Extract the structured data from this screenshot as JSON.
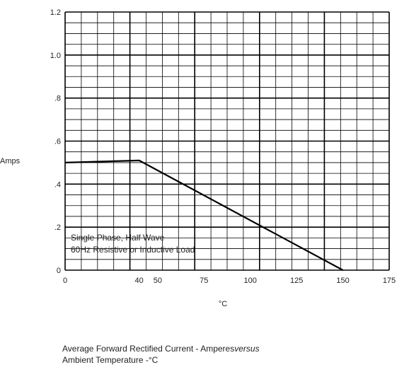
{
  "chart_data": {
    "type": "line",
    "x": [
      0,
      40,
      150
    ],
    "y": [
      0.5,
      0.51,
      0
    ],
    "xlim": [
      0,
      175
    ],
    "ylim": [
      0,
      1.2
    ],
    "x_ticks": [
      {
        "value": 0,
        "label": "0"
      },
      {
        "value": 40,
        "label": "40"
      },
      {
        "value": 50,
        "label": "50"
      },
      {
        "value": 75,
        "label": "75"
      },
      {
        "value": 100,
        "label": "100"
      },
      {
        "value": 125,
        "label": "125"
      },
      {
        "value": 150,
        "label": "150"
      },
      {
        "value": 175,
        "label": "175"
      }
    ],
    "y_ticks": [
      {
        "value": 0,
        "label": "0"
      },
      {
        "value": 0.2,
        "label": ".2"
      },
      {
        "value": 0.4,
        "label": ".4"
      },
      {
        "value": 0.6,
        "label": ".6"
      },
      {
        "value": 0.8,
        "label": ".8"
      },
      {
        "value": 1.0,
        "label": "1.0"
      },
      {
        "value": 1.2,
        "label": "1.2"
      }
    ],
    "xlabel": "°C",
    "ylabel": "Amps",
    "grid": true,
    "annotation": [
      "Single Phase, Half Wave",
      "60Hz Resistive or Inductive Load"
    ],
    "caption": {
      "line1_prefix": "Average Forward Rectified Current  -  Amperes",
      "line1_italic": "versus",
      "line2": "Ambient Temperature  -°C"
    }
  }
}
